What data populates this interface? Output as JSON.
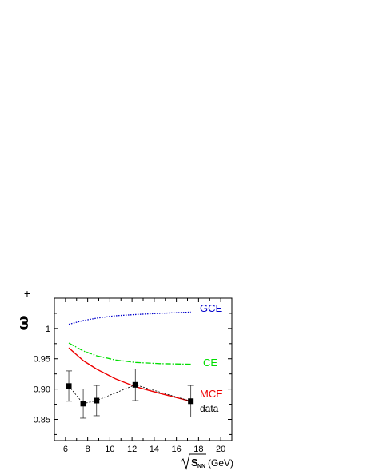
{
  "chart_data": {
    "type": "line",
    "x_axis": {
      "min": 5,
      "max": 21,
      "ticks": [
        6,
        8,
        10,
        12,
        14,
        16,
        18,
        20
      ],
      "tick_labels": [
        "6",
        "8",
        "10",
        "12",
        "14",
        "16",
        "18",
        "20"
      ],
      "label_symbol": "S",
      "label_subscript": "NN",
      "label_unit": "(GeV)"
    },
    "y_axis": {
      "min": 0.815,
      "max": 1.05,
      "ticks": [
        0.85,
        0.9,
        0.95,
        1.0
      ],
      "tick_labels": [
        "0.85",
        "0.90",
        "0.95",
        "1"
      ],
      "label_symbol": "ω",
      "label_superscript": "+"
    },
    "series": [
      {
        "name": "GCE",
        "style": "dotted",
        "color": "#0000cc",
        "x": [
          6.3,
          7.6,
          8.8,
          10.5,
          12.3,
          14.5,
          17.3
        ],
        "y": [
          1.007,
          1.013,
          1.017,
          1.021,
          1.023,
          1.025,
          1.027
        ]
      },
      {
        "name": "CE",
        "style": "dashdot",
        "color": "#00dd00",
        "x": [
          6.3,
          7.6,
          8.8,
          10.5,
          12.3,
          14.5,
          17.3
        ],
        "y": [
          0.976,
          0.963,
          0.955,
          0.948,
          0.944,
          0.942,
          0.941
        ]
      },
      {
        "name": "MCE",
        "style": "solid",
        "color": "#ee0000",
        "x": [
          6.3,
          7.6,
          8.8,
          10.5,
          12.3,
          14.5,
          17.3
        ],
        "y": [
          0.968,
          0.947,
          0.933,
          0.917,
          0.904,
          0.893,
          0.88
        ]
      },
      {
        "name": "data",
        "style": "markers-dashed",
        "color": "#000000",
        "x": [
          6.3,
          7.6,
          8.8,
          12.3,
          17.3
        ],
        "y": [
          0.905,
          0.876,
          0.881,
          0.907,
          0.88
        ],
        "err": [
          0.025,
          0.024,
          0.025,
          0.026,
          0.026
        ]
      }
    ],
    "legend": [
      {
        "label": "GCE",
        "color": "#0000cc"
      },
      {
        "label": "CE",
        "color": "#00dd00"
      },
      {
        "label": "MCE",
        "color": "#ee0000"
      },
      {
        "label": "data",
        "color": "#000000"
      }
    ]
  }
}
